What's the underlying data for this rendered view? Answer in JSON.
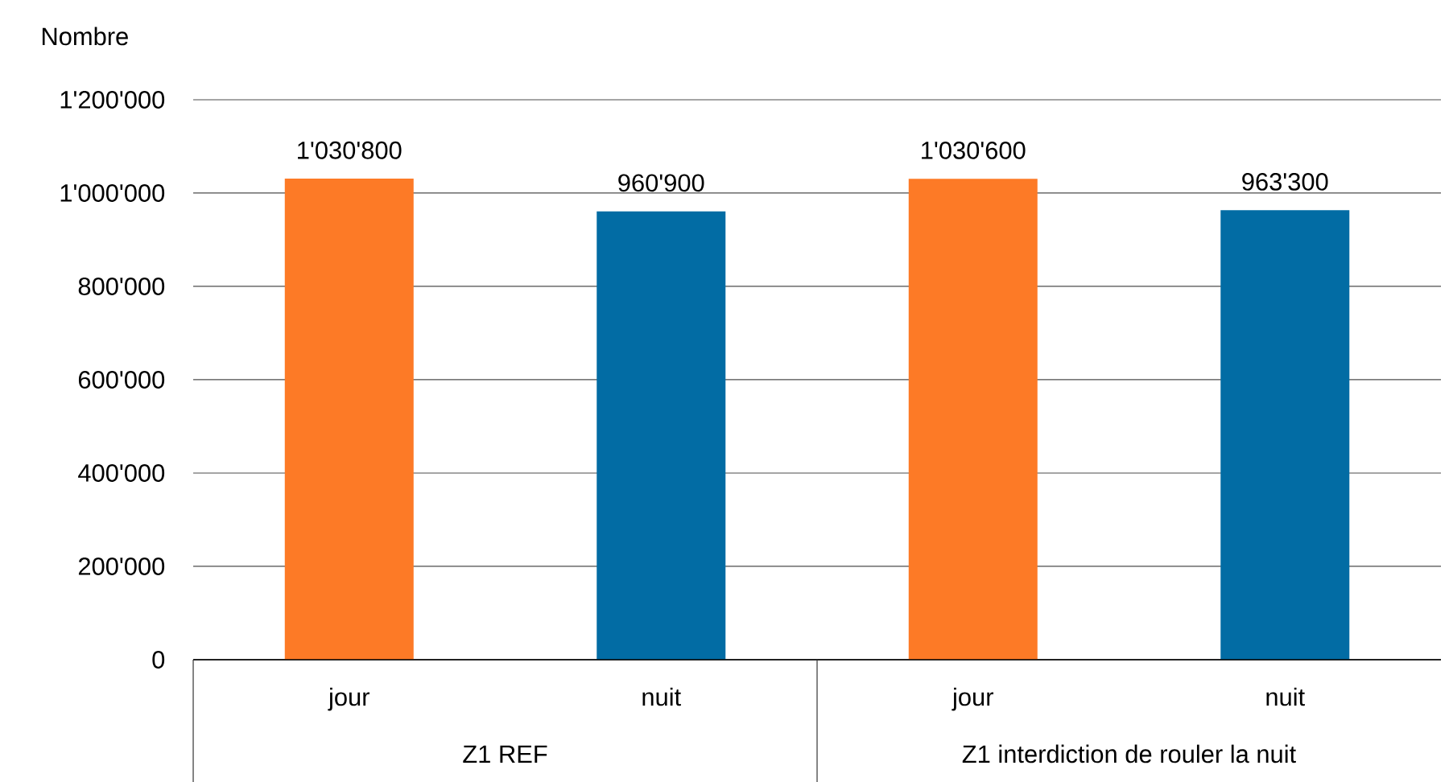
{
  "chart_data": {
    "type": "bar",
    "ylabel": "Nombre",
    "categories": [
      "jour",
      "nuit",
      "jour",
      "nuit"
    ],
    "values": [
      1030800,
      960900,
      1030600,
      963300
    ],
    "colors": [
      "#fd7a26",
      "#026ca4",
      "#fd7a26",
      "#026ca4"
    ],
    "value_labels": [
      "1'030'800",
      "960'900",
      "1'030'600",
      "963'300"
    ],
    "ylim": [
      0,
      1200000
    ],
    "yticks": [
      {
        "value": 0,
        "label": "0"
      },
      {
        "value": 200000,
        "label": "200'000"
      },
      {
        "value": 400000,
        "label": "400'000"
      },
      {
        "value": 600000,
        "label": "600'000"
      },
      {
        "value": 800000,
        "label": "800'000"
      },
      {
        "value": 1000000,
        "label": "1'000'000"
      },
      {
        "value": 1200000,
        "label": "1'200'000"
      }
    ],
    "grid": "y",
    "annotations": [
      "Z1 REF",
      "Z1 interdiction de rouler la nuit"
    ]
  }
}
